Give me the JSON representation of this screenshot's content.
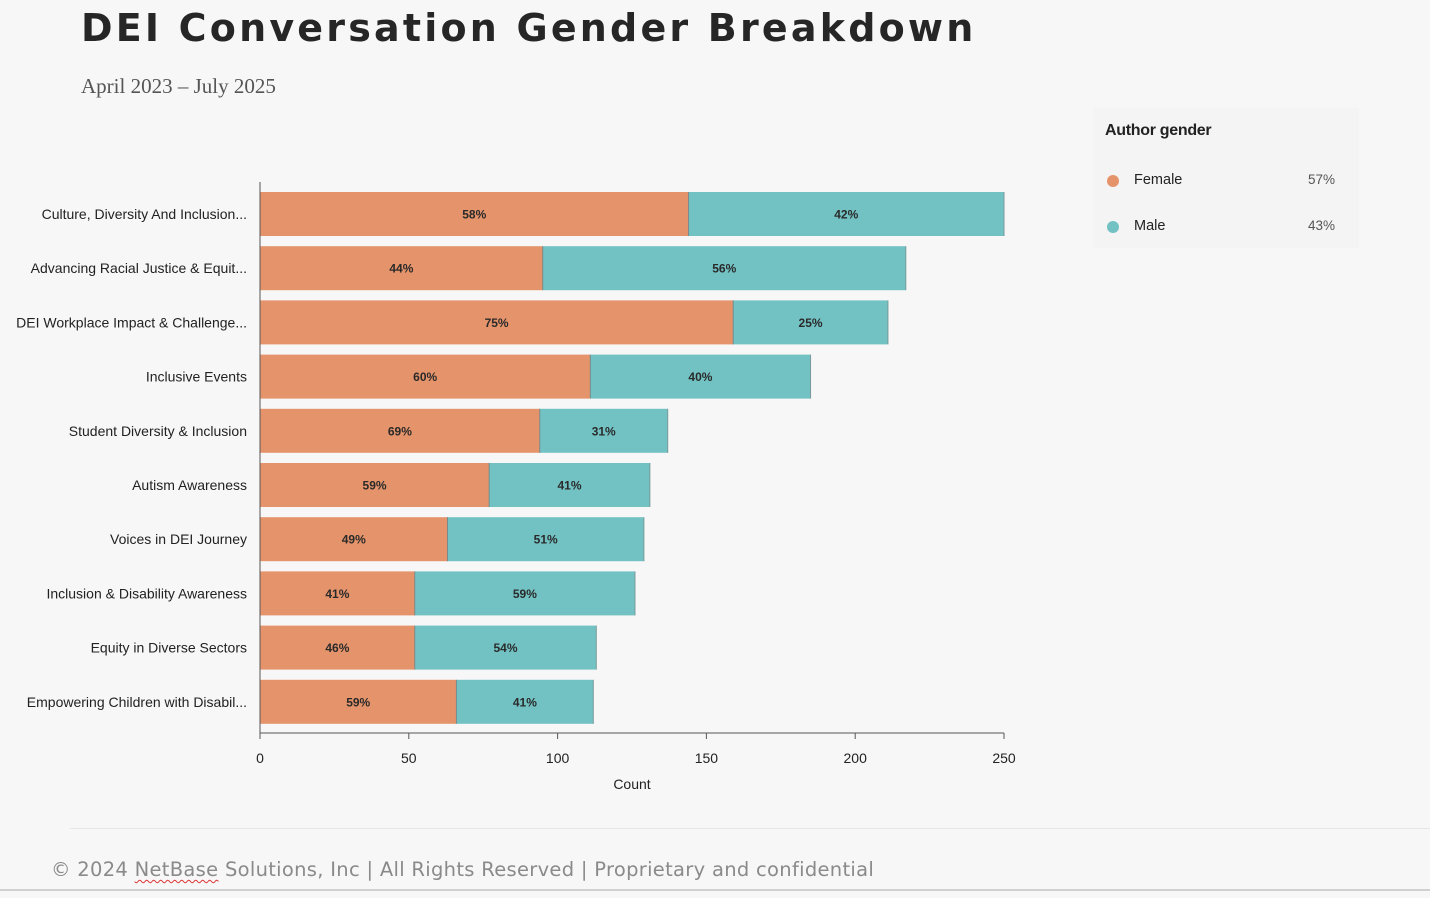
{
  "title": "DEI Conversation Gender Breakdown",
  "subtitle": "April 2023 – July 2025",
  "footer": {
    "prefix": "© 2024 ",
    "brand": "NetBase",
    "suffix": " Solutions, Inc | All Rights Reserved | Proprietary and confidential"
  },
  "legend": {
    "title": "Author gender",
    "items": [
      {
        "label": "Female",
        "pct": "57%",
        "color": "#e5936a"
      },
      {
        "label": "Male",
        "pct": "43%",
        "color": "#72c2c4"
      }
    ]
  },
  "chart_data": {
    "type": "bar",
    "orientation": "horizontal",
    "stacked": true,
    "xlabel": "Count",
    "ylabel": "",
    "xlim": [
      0,
      250
    ],
    "xticks": [
      0,
      50,
      100,
      150,
      200,
      250
    ],
    "categories": [
      "Culture, Diversity And Inclusion...",
      "Advancing Racial Justice & Equit...",
      "DEI Workplace Impact & Challenge...",
      "Inclusive Events",
      "Student Diversity & Inclusion",
      "Autism Awareness",
      "Voices in DEI Journey",
      "Inclusion & Disability Awareness",
      "Equity in Diverse Sectors",
      "Empowering Children with Disabil..."
    ],
    "series": [
      {
        "name": "Female",
        "color": "#e5936a",
        "values": [
          144,
          95,
          159,
          111,
          94,
          77,
          63,
          52,
          52,
          66
        ],
        "labels": [
          "58%",
          "44%",
          "75%",
          "60%",
          "69%",
          "59%",
          "49%",
          "41%",
          "46%",
          "59%"
        ]
      },
      {
        "name": "Male",
        "color": "#72c2c4",
        "values": [
          106,
          122,
          52,
          74,
          43,
          54,
          66,
          74,
          61,
          46
        ],
        "labels": [
          "42%",
          "56%",
          "25%",
          "40%",
          "31%",
          "41%",
          "51%",
          "59%",
          "54%",
          "41%"
        ]
      }
    ]
  }
}
